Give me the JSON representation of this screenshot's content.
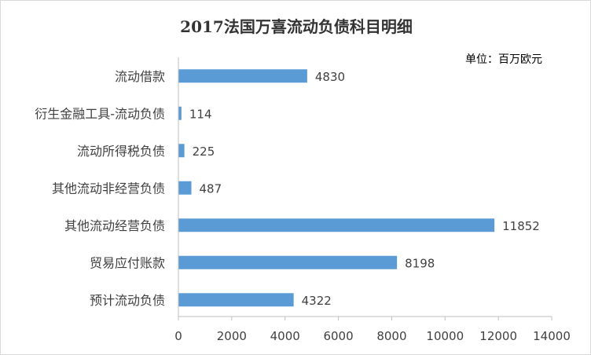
{
  "chart_data": {
    "type": "bar",
    "orientation": "horizontal",
    "title": "2017法国万喜流动负债科目明细",
    "unit_note": "单位：百万欧元",
    "categories": [
      "流动借款",
      "衍生金融工具-流动负债",
      "流动所得税负债",
      "其他流动非经营负债",
      "其他流动经营负债",
      "贸易应付账款",
      "预计流动负债"
    ],
    "values": [
      4830,
      114,
      225,
      487,
      11852,
      8198,
      4322
    ],
    "xlim": [
      0,
      14000
    ],
    "x_ticks": [
      0,
      2000,
      4000,
      6000,
      8000,
      10000,
      12000,
      14000
    ],
    "data_labels": true,
    "grid": false,
    "bar_color": "#5b9bd5",
    "axis_color": "#bfbfbf",
    "text_color": "#404040",
    "title_color": "#333333"
  }
}
